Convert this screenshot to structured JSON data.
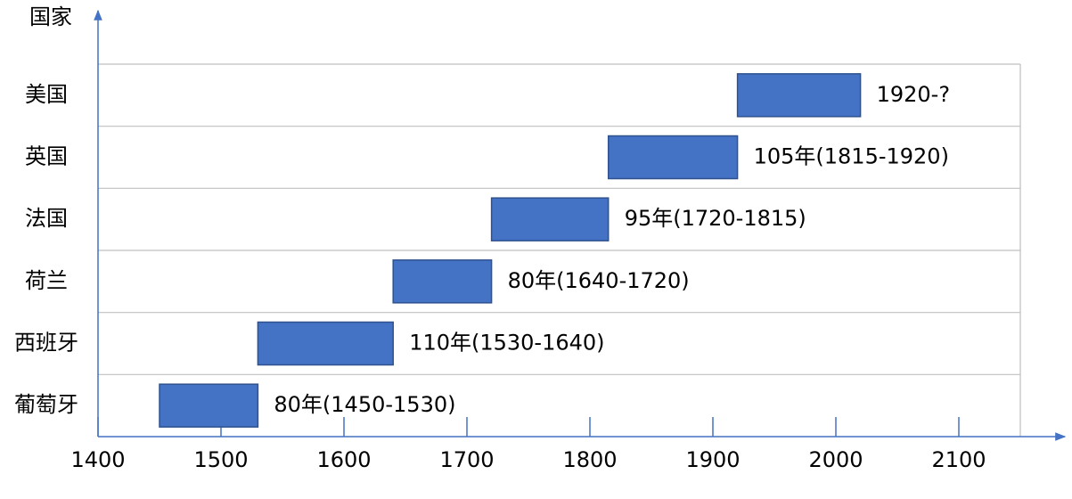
{
  "chart_data": {
    "type": "gantt",
    "y_label": "国家",
    "categories": [
      "葡萄牙",
      "西班牙",
      "荷兰",
      "法国",
      "英国",
      "美国"
    ],
    "starts": [
      1450,
      1530,
      1640,
      1720,
      1815,
      1920
    ],
    "ends": [
      1530,
      1640,
      1720,
      1815,
      1920,
      2020
    ],
    "value_labels": [
      "80年(1450-1530)",
      "110年(1530-1640)",
      "80年(1640-1720)",
      "95年(1720-1815)",
      "105年(1815-1920)",
      "1920-?"
    ],
    "color": "#4472c4",
    "xlim": [
      1400,
      2150
    ],
    "xticks": [
      1400,
      1500,
      1600,
      1700,
      1800,
      1900,
      2000,
      2100
    ],
    "grid": true
  }
}
